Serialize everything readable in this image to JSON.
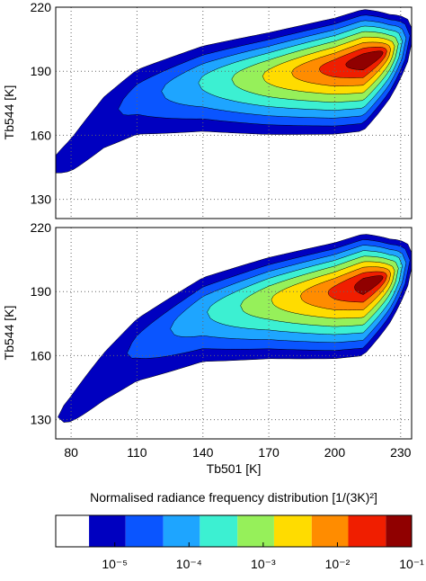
{
  "chart_data": [
    {
      "type": "contour",
      "ylabel": "Tb544 [K]",
      "xlim": [
        73,
        235
      ],
      "ylim": [
        121,
        220
      ],
      "xticks": [
        80,
        110,
        140,
        170,
        200,
        230
      ],
      "yticks": [
        130,
        160,
        190,
        220
      ],
      "grid": true
    },
    {
      "type": "contour",
      "xlabel": "Tb501 [K]",
      "ylabel": "Tb544 [K]",
      "xlim": [
        73,
        235
      ],
      "ylim": [
        121,
        220
      ],
      "xticks": [
        80,
        110,
        140,
        170,
        200,
        230
      ],
      "yticks": [
        130,
        160,
        190,
        220
      ],
      "grid": true
    }
  ],
  "colorbar": {
    "title": "Normalised radiance frequency distribution [1/(3K)²]",
    "scale": "log",
    "lim": [
      1.6e-06,
      0.1
    ],
    "ticks": [
      {
        "value": 1e-05,
        "label": "10⁻⁵"
      },
      {
        "value": 0.0001,
        "label": "10⁻⁴"
      },
      {
        "value": 0.001,
        "label": "10⁻³"
      },
      {
        "value": 0.01,
        "label": "10⁻²"
      },
      {
        "value": 0.1,
        "label": "10⁻¹"
      }
    ],
    "levels": [
      4.5e-06,
      1.4e-05,
      4.5e-05,
      0.00014,
      0.00045,
      0.0014,
      0.0045,
      0.014,
      0.045
    ],
    "colors": [
      "#ffffff",
      "#0000c0",
      "#0a55ff",
      "#1ea5ff",
      "#3cf0d2",
      "#96f05a",
      "#ffdc00",
      "#ff8c00",
      "#f01e00",
      "#900000"
    ]
  }
}
